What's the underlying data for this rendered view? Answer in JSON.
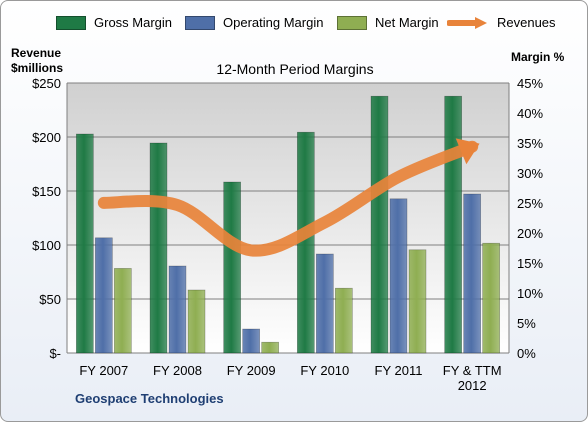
{
  "chart_data": {
    "type": "bar",
    "title": "12-Month Period Margins",
    "ylabel_left": [
      "Revenue",
      "$millions"
    ],
    "ylabel_right": "Margin %",
    "categories": [
      [
        "FY 2007"
      ],
      [
        "FY 2008"
      ],
      [
        "FY 2009"
      ],
      [
        "FY 2010"
      ],
      [
        "FY 2011"
      ],
      [
        "FY & TTM",
        "2012"
      ]
    ],
    "left_axis": {
      "ylim": [
        0,
        250
      ],
      "ticks": [
        0,
        50,
        100,
        150,
        200,
        250
      ],
      "tick_labels": [
        "$-",
        "$50",
        "$100",
        "$150",
        "$200",
        "$250"
      ]
    },
    "right_axis": {
      "ylim": [
        0,
        45
      ],
      "ticks": [
        0,
        5,
        10,
        15,
        20,
        25,
        30,
        35,
        40,
        45
      ],
      "tick_labels": [
        "0%",
        "5%",
        "10%",
        "15%",
        "20%",
        "25%",
        "30%",
        "35%",
        "40%",
        "45%"
      ]
    },
    "series": [
      {
        "name": "Gross Margin",
        "axis": "right",
        "color": "#1f7a45",
        "values": [
          36.5,
          35.0,
          28.5,
          36.8,
          42.8,
          42.8
        ]
      },
      {
        "name": "Operating Margin",
        "axis": "right",
        "color": "#4f6fa8",
        "values": [
          19.2,
          14.5,
          4.0,
          16.5,
          25.7,
          26.5
        ]
      },
      {
        "name": "Net Margin",
        "axis": "right",
        "color": "#8fae52",
        "values": [
          14.1,
          10.5,
          1.8,
          10.8,
          17.2,
          18.3
        ]
      }
    ],
    "revenues": {
      "name": "Revenues",
      "axis": "left",
      "color": "#e8833a",
      "values": [
        139,
        137,
        95,
        121,
        163,
        191
      ]
    },
    "grid": true,
    "legend_position": "top"
  },
  "footer": {
    "company": "Geospace Technologies"
  }
}
